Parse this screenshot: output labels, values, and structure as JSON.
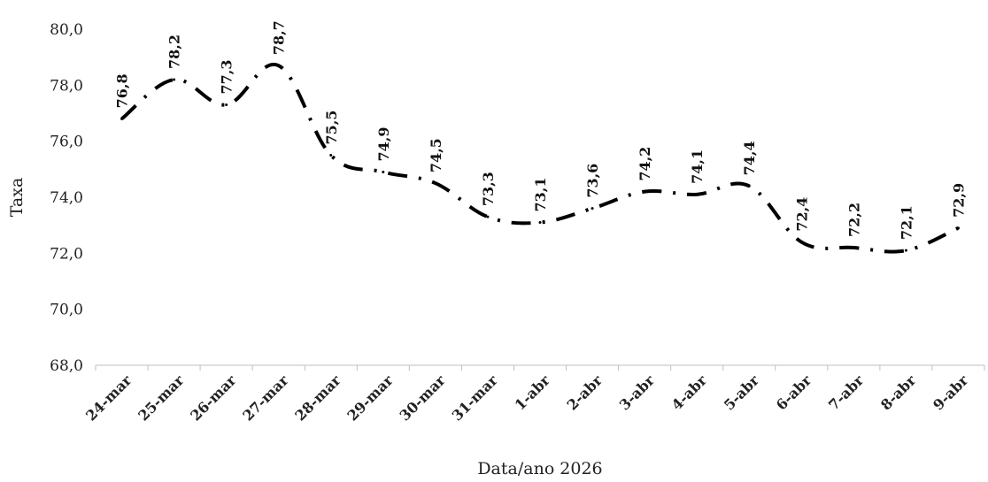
{
  "chart_data": {
    "type": "line",
    "title": "",
    "xlabel": "Data/ano 2026",
    "ylabel": "Taxa",
    "ylim": [
      68,
      80
    ],
    "yticks": [
      "68,0",
      "70,0",
      "72,0",
      "74,0",
      "76,0",
      "78,0",
      "80,0"
    ],
    "ytick_values": [
      68,
      70,
      72,
      74,
      76,
      78,
      80
    ],
    "grid": false,
    "legend": "none",
    "line_style": "long-dash-dot",
    "line_color": "#000000",
    "categories": [
      "24-mar",
      "25-mar",
      "26-mar",
      "27-mar",
      "28-mar",
      "29-mar",
      "30-mar",
      "31-mar",
      "1-abr",
      "2-abr",
      "3-abr",
      "4-abr",
      "5-abr",
      "6-abr",
      "7-abr",
      "8-abr",
      "9-abr"
    ],
    "values": [
      76.8,
      78.2,
      77.3,
      78.7,
      75.5,
      74.9,
      74.5,
      73.3,
      73.1,
      73.6,
      74.2,
      74.1,
      74.4,
      72.4,
      72.2,
      72.1,
      72.9
    ],
    "value_labels": [
      "76,8",
      "78,2",
      "77,3",
      "78,7",
      "75,5",
      "74,9",
      "74,5",
      "73,3",
      "73,1",
      "73,6",
      "74,2",
      "74,1",
      "74,4",
      "72,4",
      "72,2",
      "72,1",
      "72,9"
    ]
  }
}
